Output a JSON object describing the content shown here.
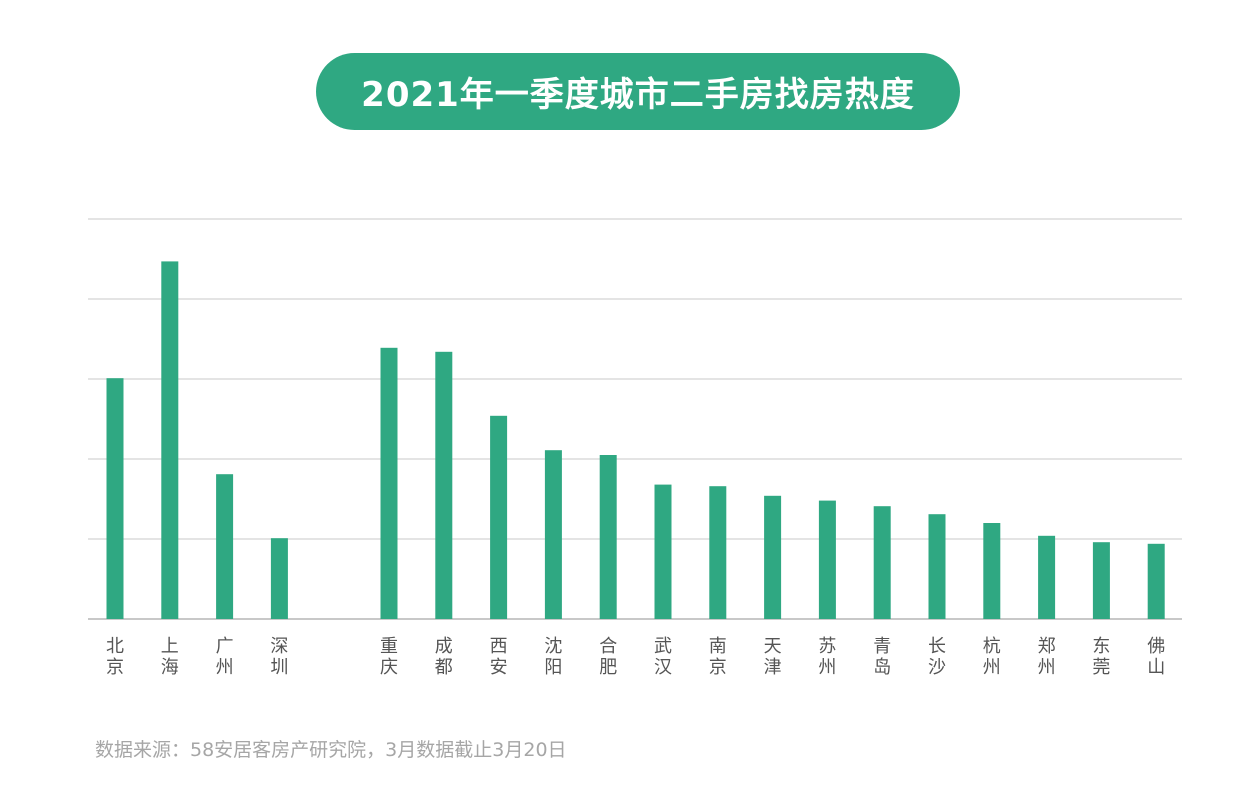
{
  "chart_data": {
    "type": "bar",
    "title": "2021年一季度城市二手房找房热度",
    "categories": [
      "北京",
      "上海",
      "广州",
      "深圳",
      "重庆",
      "成都",
      "西安",
      "沈阳",
      "合肥",
      "武汉",
      "南京",
      "天津",
      "苏州",
      "青岛",
      "长沙",
      "杭州",
      "郑州",
      "东莞",
      "佛山"
    ],
    "values": [
      3.01,
      4.47,
      1.81,
      1.01,
      3.39,
      3.34,
      2.54,
      2.11,
      2.05,
      1.68,
      1.66,
      1.54,
      1.48,
      1.41,
      1.31,
      1.2,
      1.04,
      0.96,
      0.94
    ],
    "ylim": [
      0,
      5
    ],
    "grid": true,
    "xlabel": "",
    "ylabel": "",
    "bar_color": "#2fa882"
  },
  "source": "数据来源：58安居客房产研究院，3月数据截止3月20日"
}
